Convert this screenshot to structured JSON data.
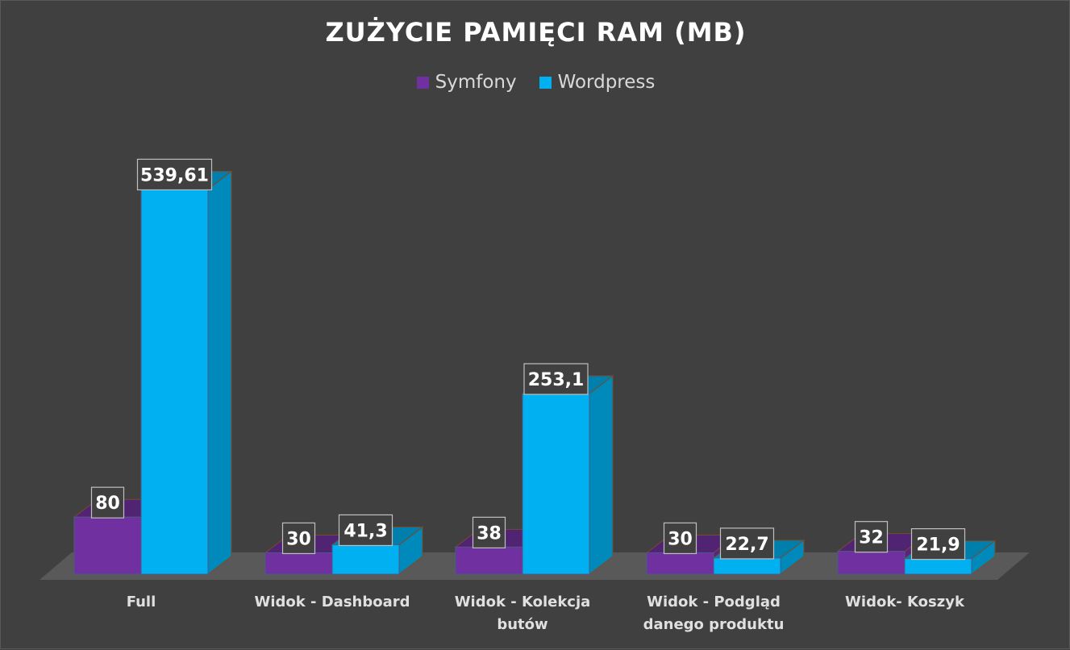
{
  "title": "ZUŻYCIE PAMIĘCI RAM (MB)",
  "legend": [
    {
      "name": "Symfony",
      "color": "#7030A0"
    },
    {
      "name": "Wordpress",
      "color": "#00B0F0"
    }
  ],
  "chart_data": {
    "type": "bar",
    "title": "ZUŻYCIE PAMIĘCI RAM (MB)",
    "categories": [
      "Full",
      "Widok - Dashboard",
      "Widok - Kolekcja butów",
      "Widok - Podgląd danego produktu",
      "Widok- Koszyk"
    ],
    "category_lines": [
      [
        "Full"
      ],
      [
        "Widok - Dashboard"
      ],
      [
        "Widok - Kolekcja",
        "butów"
      ],
      [
        "Widok - Podgląd",
        "danego produktu"
      ],
      [
        "Widok- Koszyk"
      ]
    ],
    "series": [
      {
        "name": "Symfony",
        "values": [
          80,
          30,
          38,
          30,
          32
        ],
        "labels": [
          "80",
          "30",
          "38",
          "30",
          "32"
        ],
        "color": "#7030A0"
      },
      {
        "name": "Wordpress",
        "values": [
          539.61,
          41.3,
          253.1,
          22.7,
          21.9
        ],
        "labels": [
          "539,61",
          "41,3",
          "253,1",
          "22,7",
          "21,9"
        ],
        "color": "#00B0F0"
      }
    ],
    "ylim": [
      0,
      560
    ],
    "grid": false,
    "legend_position": "top",
    "style": "3d-column"
  }
}
